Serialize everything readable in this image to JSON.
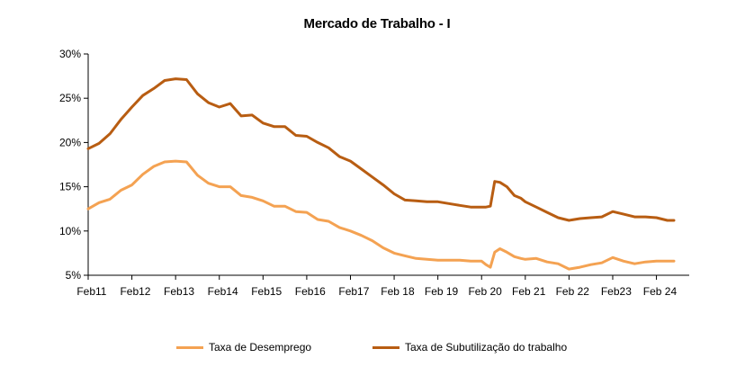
{
  "chart_data": {
    "type": "line",
    "title": "Mercado de Trabalho -  I",
    "xlabel": "",
    "ylabel": "",
    "ylim": [
      5,
      30
    ],
    "yticks": [
      "5%",
      "10%",
      "15%",
      "20%",
      "25%",
      "30%"
    ],
    "ytick_values": [
      5,
      10,
      15,
      20,
      25,
      30
    ],
    "xticks": [
      "Feb11",
      "Feb12",
      "Feb13",
      "Feb14",
      "Feb15",
      "Feb16",
      "Feb17",
      "Feb 18",
      "Feb 19",
      "Feb 20",
      "Feb 21",
      "Feb 22",
      "Feb23",
      "Feb 24"
    ],
    "xtick_years": [
      2011,
      2012,
      2013,
      2014,
      2015,
      2016,
      2017,
      2018,
      2019,
      2020,
      2021,
      2022,
      2023,
      2024
    ],
    "xlim": [
      2011.0,
      2024.75
    ],
    "grid": false,
    "legend_position": "bottom",
    "series": [
      {
        "name": "Taxa de Desemprego",
        "color": "#F4A252",
        "x": [
          2011.0,
          2011.25,
          2011.5,
          2011.75,
          2012.0,
          2012.25,
          2012.5,
          2012.75,
          2013.0,
          2013.25,
          2013.5,
          2013.75,
          2014.0,
          2014.25,
          2014.5,
          2014.75,
          2015.0,
          2015.25,
          2015.5,
          2015.75,
          2016.0,
          2016.25,
          2016.5,
          2016.75,
          2017.0,
          2017.25,
          2017.5,
          2017.75,
          2018.0,
          2018.25,
          2018.5,
          2018.75,
          2019.0,
          2019.25,
          2019.5,
          2019.75,
          2020.0,
          2020.1,
          2020.2,
          2020.3,
          2020.42,
          2020.58,
          2020.75,
          2020.9,
          2021.0,
          2021.25,
          2021.5,
          2021.75,
          2022.0,
          2022.25,
          2022.5,
          2022.75,
          2023.0,
          2023.25,
          2023.5,
          2023.75,
          2024.0,
          2024.25,
          2024.4
        ],
        "values": [
          12.5,
          13.2,
          13.6,
          14.6,
          15.2,
          16.4,
          17.3,
          17.8,
          17.9,
          17.8,
          16.3,
          15.4,
          15.0,
          15.0,
          14.0,
          13.8,
          13.4,
          12.8,
          12.8,
          12.2,
          12.1,
          11.3,
          11.1,
          10.4,
          10.0,
          9.5,
          8.9,
          8.1,
          7.5,
          7.2,
          6.9,
          6.8,
          6.7,
          6.7,
          6.7,
          6.6,
          6.6,
          6.2,
          5.9,
          7.6,
          8.0,
          7.6,
          7.1,
          6.9,
          6.8,
          6.9,
          6.5,
          6.3,
          5.7,
          5.9,
          6.2,
          6.4,
          7.0,
          6.6,
          6.3,
          6.5,
          6.6,
          6.6,
          6.6
        ]
      },
      {
        "name": "Taxa de Subutilização do trabalho",
        "color": "#B85D12",
        "x": [
          2011.0,
          2011.25,
          2011.5,
          2011.75,
          2012.0,
          2012.25,
          2012.5,
          2012.75,
          2013.0,
          2013.25,
          2013.5,
          2013.75,
          2014.0,
          2014.25,
          2014.5,
          2014.75,
          2015.0,
          2015.25,
          2015.5,
          2015.75,
          2016.0,
          2016.25,
          2016.5,
          2016.75,
          2017.0,
          2017.25,
          2017.5,
          2017.75,
          2018.0,
          2018.25,
          2018.5,
          2018.75,
          2019.0,
          2019.25,
          2019.5,
          2019.75,
          2020.0,
          2020.1,
          2020.2,
          2020.3,
          2020.42,
          2020.58,
          2020.75,
          2020.9,
          2021.0,
          2021.25,
          2021.5,
          2021.75,
          2022.0,
          2022.25,
          2022.5,
          2022.75,
          2023.0,
          2023.25,
          2023.5,
          2023.75,
          2024.0,
          2024.25,
          2024.4
        ],
        "values": [
          19.3,
          19.9,
          21.0,
          22.6,
          24.0,
          25.3,
          26.1,
          27.0,
          27.2,
          27.1,
          25.5,
          24.5,
          24.0,
          24.4,
          23.0,
          23.1,
          22.2,
          21.8,
          21.8,
          20.8,
          20.7,
          20.0,
          19.4,
          18.4,
          17.9,
          17.0,
          16.1,
          15.2,
          14.2,
          13.5,
          13.4,
          13.3,
          13.3,
          13.1,
          12.9,
          12.7,
          12.7,
          12.7,
          12.8,
          15.6,
          15.5,
          15.0,
          14.0,
          13.7,
          13.3,
          12.7,
          12.1,
          11.5,
          11.2,
          11.4,
          11.5,
          11.6,
          12.2,
          11.9,
          11.6,
          11.6,
          11.5,
          11.2,
          11.2
        ]
      }
    ]
  }
}
